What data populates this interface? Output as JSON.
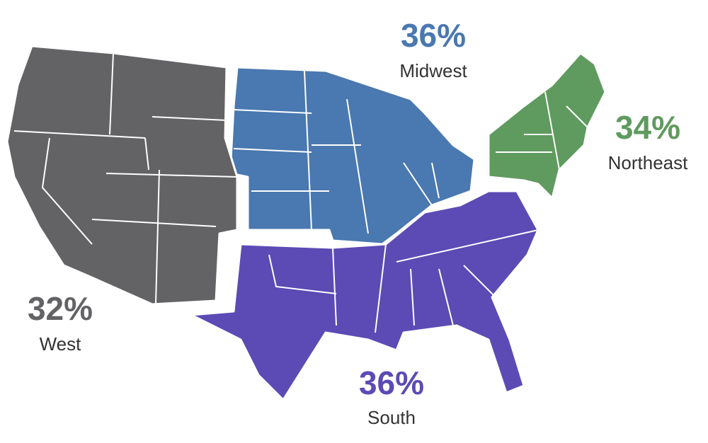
{
  "regions": [
    {
      "name": "Midwest",
      "percent": "36%",
      "color": "#4a78b0"
    },
    {
      "name": "Northeast",
      "percent": "34%",
      "color": "#5f9a5e"
    },
    {
      "name": "West",
      "percent": "32%",
      "color": "#636366"
    },
    {
      "name": "South",
      "percent": "36%",
      "color": "#5c4ab5"
    }
  ]
}
